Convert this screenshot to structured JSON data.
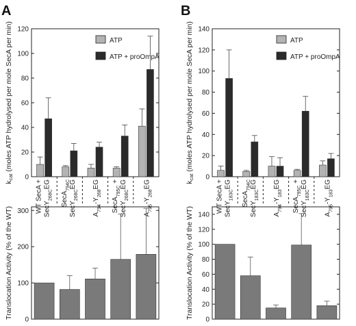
{
  "panels": [
    {
      "letter": "A",
      "top": {
        "ylabel": "k",
        "ylabel_sub": "cat",
        "ylabel_rest": " (moles ATP hydrolysed per mole SecA per min)",
        "ylim": [
          0,
          120
        ],
        "yticks": [
          0,
          20,
          40,
          60,
          80,
          100,
          120
        ],
        "legend": [
          "ATP",
          "ATP + proOmpA"
        ],
        "legend_position": "top-right",
        "colors": [
          "#b3b3b3",
          "#2b2b2b"
        ],
        "groups": [
          {
            "lines": [
              [
                "WT SecA +",
                ""
              ],
              [
                "SecY",
                "268C",
                "EG"
              ]
            ],
            "values": [
              10,
              47
            ],
            "errors": [
              6,
              17
            ]
          },
          {
            "lines": [
              [
                "SecA",
                "794C",
                ""
              ],
              [
                "SecY",
                "268C",
                "EG"
              ]
            ],
            "values": [
              8,
              21
            ],
            "errors": [
              1,
              6
            ]
          },
          {
            "lines": [
              [
                "A",
                "794",
                "-Y",
                "268",
                "EG"
              ]
            ],
            "values": [
              7,
              24
            ],
            "errors": [
              3,
              4
            ]
          },
          {
            "lines": [
              [
                "SecA",
                "795C",
                " +"
              ],
              [
                "SecY",
                "268C",
                "EG"
              ]
            ],
            "values": [
              7,
              33
            ],
            "errors": [
              1,
              9
            ]
          },
          {
            "lines": [
              [
                "A",
                "795",
                "-Y",
                "268",
                "EG"
              ]
            ],
            "values": [
              41,
              87
            ],
            "errors": [
              14,
              27
            ]
          }
        ]
      },
      "bottom": {
        "ylabel": "Translocation Activity (% of the WT)",
        "ylim": [
          0,
          310
        ],
        "yticks": [
          0,
          100,
          200,
          300
        ],
        "color": "#7a7a7a",
        "values": [
          100,
          82,
          111,
          165,
          179
        ],
        "errors": [
          0,
          38,
          30,
          125,
          127
        ]
      }
    },
    {
      "letter": "B",
      "top": {
        "ylabel": "k",
        "ylabel_sub": "cat",
        "ylabel_rest": " (moles ATP hydrolysed per mole SecA per min)",
        "ylim": [
          0,
          140
        ],
        "yticks": [
          0,
          20,
          40,
          60,
          80,
          100,
          120,
          140
        ],
        "legend": [
          "ATP",
          "ATP + proOmpA"
        ],
        "legend_position": "top-right",
        "colors": [
          "#b3b3b3",
          "#2b2b2b"
        ],
        "groups": [
          {
            "lines": [
              [
                "WT SecA +",
                ""
              ],
              [
                "SecY",
                "183C",
                "EG"
              ]
            ],
            "values": [
              6,
              93
            ],
            "errors": [
              4,
              27
            ]
          },
          {
            "lines": [
              [
                "SecA",
                "794C",
                ""
              ],
              [
                "SecY",
                "183C",
                "EG"
              ]
            ],
            "values": [
              5,
              33
            ],
            "errors": [
              1,
              6
            ]
          },
          {
            "lines": [
              [
                "A",
                "794",
                "-Y",
                "183",
                "EG"
              ]
            ],
            "values": [
              10,
              10
            ],
            "errors": [
              9,
              8
            ]
          },
          {
            "lines": [
              [
                "SecA",
                "795C",
                " +"
              ],
              [
                "SecY",
                "183C",
                "EG"
              ]
            ],
            "values": [
              6,
              62
            ],
            "errors": [
              1,
              14
            ]
          },
          {
            "lines": [
              [
                "A",
                "795",
                "-Y",
                "183",
                "EG"
              ]
            ],
            "values": [
              11,
              17
            ],
            "errors": [
              4,
              5
            ]
          }
        ]
      },
      "bottom": {
        "ylabel": "Translocation Activity (% of the WT)",
        "ylim": [
          0,
          150
        ],
        "yticks": [
          0,
          20,
          40,
          60,
          80,
          100,
          120,
          140
        ],
        "color": "#7a7a7a",
        "values": [
          100,
          58,
          15,
          99,
          18
        ],
        "errors": [
          0,
          25,
          4,
          42,
          6
        ]
      }
    }
  ],
  "chart_data": [
    {
      "type": "bar",
      "panel": "A",
      "categories": [
        "WT SecA + SecY268CEG",
        "SecA794C SecY268CEG",
        "A794-Y268EG",
        "SecA795C + SecY268CEG",
        "A795-Y268EG"
      ],
      "series": [
        {
          "name": "ATP",
          "values": [
            10,
            8,
            7,
            7,
            41
          ],
          "errors": [
            6,
            1,
            3,
            1,
            14
          ]
        },
        {
          "name": "ATP + proOmpA",
          "values": [
            47,
            21,
            24,
            33,
            87
          ],
          "errors": [
            17,
            6,
            4,
            9,
            27
          ]
        }
      ],
      "ylabel": "kcat (moles ATP hydrolysed per mole SecA per min)",
      "ylim": [
        0,
        120
      ]
    },
    {
      "type": "bar",
      "panel": "A",
      "categories": [
        "WT SecA + SecY268CEG",
        "SecA794C SecY268CEG",
        "A794-Y268EG",
        "SecA795C + SecY268CEG",
        "A795-Y268EG"
      ],
      "values": [
        100,
        82,
        111,
        165,
        179
      ],
      "errors": [
        0,
        38,
        30,
        125,
        127
      ],
      "ylabel": "Translocation Activity (% of the WT)",
      "ylim": [
        0,
        310
      ]
    },
    {
      "type": "bar",
      "panel": "B",
      "categories": [
        "WT SecA + SecY183CEG",
        "SecA794C SecY183CEG",
        "A794-Y183EG",
        "SecA795C + SecY183CEG",
        "A795-Y183EG"
      ],
      "series": [
        {
          "name": "ATP",
          "values": [
            6,
            5,
            10,
            6,
            11
          ],
          "errors": [
            4,
            1,
            9,
            1,
            4
          ]
        },
        {
          "name": "ATP + proOmpA",
          "values": [
            93,
            33,
            10,
            62,
            17
          ],
          "errors": [
            27,
            6,
            8,
            14,
            5
          ]
        }
      ],
      "ylabel": "kcat (moles ATP hydrolysed per mole SecA per min)",
      "ylim": [
        0,
        140
      ]
    },
    {
      "type": "bar",
      "panel": "B",
      "categories": [
        "WT SecA + SecY183CEG",
        "SecA794C SecY183CEG",
        "A794-Y183EG",
        "SecA795C + SecY183CEG",
        "A795-Y183EG"
      ],
      "values": [
        100,
        58,
        15,
        99,
        18
      ],
      "errors": [
        0,
        25,
        4,
        42,
        6
      ],
      "ylabel": "Translocation Activity (% of the WT)",
      "ylim": [
        0,
        150
      ]
    }
  ]
}
